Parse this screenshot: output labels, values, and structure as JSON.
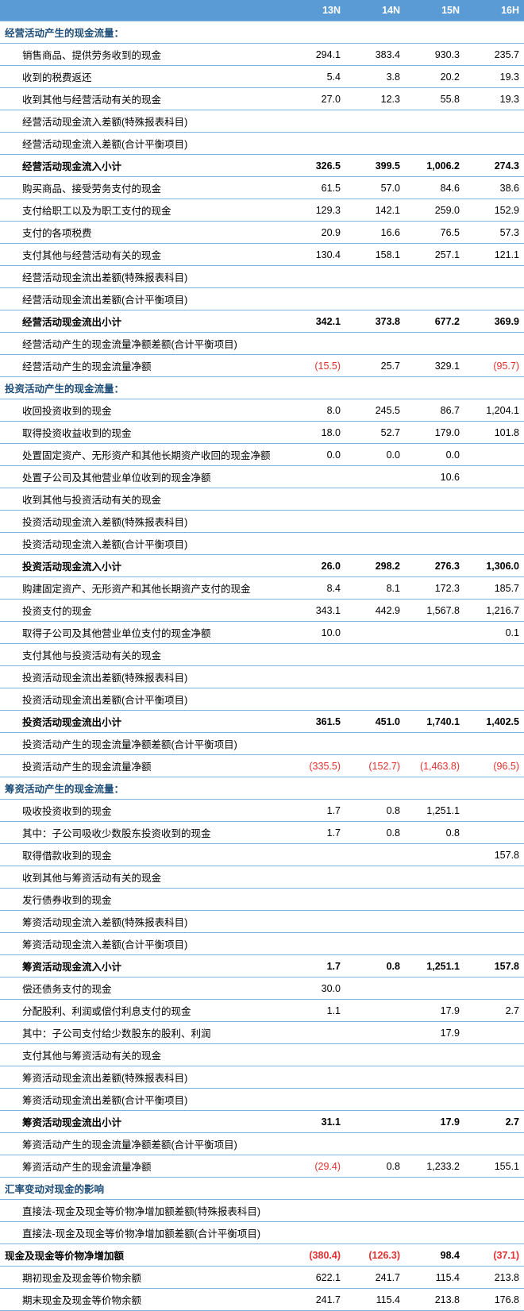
{
  "colors": {
    "header_bg": "#5b9bd5",
    "header_text": "#ffffff",
    "row_border": "#7fb3e0",
    "section_text": "#1f4e79",
    "negative": "#e03030",
    "text": "#000000"
  },
  "columns": [
    "",
    "13N",
    "14N",
    "15N",
    "16H"
  ],
  "rows": [
    {
      "type": "section",
      "label": "经营活动产生的现金流量：",
      "v": [
        "",
        "",
        "",
        ""
      ]
    },
    {
      "type": "item",
      "indent": 1,
      "label": "销售商品、提供劳务收到的现金",
      "v": [
        "294.1",
        "383.4",
        "930.3",
        "235.7"
      ]
    },
    {
      "type": "item",
      "indent": 1,
      "label": "收到的税费返还",
      "v": [
        "5.4",
        "3.8",
        "20.2",
        "19.3"
      ]
    },
    {
      "type": "item",
      "indent": 1,
      "label": "收到其他与经营活动有关的现金",
      "v": [
        "27.0",
        "12.3",
        "55.8",
        "19.3"
      ]
    },
    {
      "type": "item",
      "indent": 1,
      "label": "经营活动现金流入差额(特殊报表科目)",
      "v": [
        "",
        "",
        "",
        ""
      ]
    },
    {
      "type": "item",
      "indent": 1,
      "label": "经营活动现金流入差额(合计平衡项目)",
      "v": [
        "",
        "",
        "",
        ""
      ]
    },
    {
      "type": "subtotal",
      "indent": 1,
      "label": "经营活动现金流入小计",
      "v": [
        "326.5",
        "399.5",
        "1,006.2",
        "274.3"
      ]
    },
    {
      "type": "item",
      "indent": 1,
      "label": "购买商品、接受劳务支付的现金",
      "v": [
        "61.5",
        "57.0",
        "84.6",
        "38.6"
      ]
    },
    {
      "type": "item",
      "indent": 1,
      "label": "支付给职工以及为职工支付的现金",
      "v": [
        "129.3",
        "142.1",
        "259.0",
        "152.9"
      ]
    },
    {
      "type": "item",
      "indent": 1,
      "label": "支付的各项税费",
      "v": [
        "20.9",
        "16.6",
        "76.5",
        "57.3"
      ]
    },
    {
      "type": "item",
      "indent": 1,
      "label": "支付其他与经营活动有关的现金",
      "v": [
        "130.4",
        "158.1",
        "257.1",
        "121.1"
      ]
    },
    {
      "type": "item",
      "indent": 1,
      "label": "经营活动现金流出差额(特殊报表科目)",
      "v": [
        "",
        "",
        "",
        ""
      ]
    },
    {
      "type": "item",
      "indent": 1,
      "label": "经营活动现金流出差额(合计平衡项目)",
      "v": [
        "",
        "",
        "",
        ""
      ]
    },
    {
      "type": "subtotal",
      "indent": 1,
      "label": "经营活动现金流出小计",
      "v": [
        "342.1",
        "373.8",
        "677.2",
        "369.9"
      ]
    },
    {
      "type": "item",
      "indent": 1,
      "label": "经营活动产生的现金流量净额差额(合计平衡项目)",
      "v": [
        "",
        "",
        "",
        ""
      ]
    },
    {
      "type": "item",
      "indent": 1,
      "label": "经营活动产生的现金流量净额",
      "v": [
        "(15.5)",
        "25.7",
        "329.1",
        "(95.7)"
      ],
      "neg": [
        true,
        false,
        false,
        true
      ]
    },
    {
      "type": "section",
      "label": "投资活动产生的现金流量：",
      "v": [
        "",
        "",
        "",
        ""
      ]
    },
    {
      "type": "item",
      "indent": 1,
      "label": "收回投资收到的现金",
      "v": [
        "8.0",
        "245.5",
        "86.7",
        "1,204.1"
      ]
    },
    {
      "type": "item",
      "indent": 1,
      "label": "取得投资收益收到的现金",
      "v": [
        "18.0",
        "52.7",
        "179.0",
        "101.8"
      ]
    },
    {
      "type": "item",
      "indent": 1,
      "label": "处置固定资产、无形资产和其他长期资产收回的现金净额",
      "v": [
        "0.0",
        "0.0",
        "0.0",
        ""
      ]
    },
    {
      "type": "item",
      "indent": 1,
      "label": "处置子公司及其他营业单位收到的现金净额",
      "v": [
        "",
        "",
        "10.6",
        ""
      ]
    },
    {
      "type": "item",
      "indent": 1,
      "label": "收到其他与投资活动有关的现金",
      "v": [
        "",
        "",
        "",
        ""
      ]
    },
    {
      "type": "item",
      "indent": 1,
      "label": "投资活动现金流入差额(特殊报表科目)",
      "v": [
        "",
        "",
        "",
        ""
      ]
    },
    {
      "type": "item",
      "indent": 1,
      "label": "投资活动现金流入差额(合计平衡项目)",
      "v": [
        "",
        "",
        "",
        ""
      ]
    },
    {
      "type": "subtotal",
      "indent": 1,
      "label": "投资活动现金流入小计",
      "v": [
        "26.0",
        "298.2",
        "276.3",
        "1,306.0"
      ]
    },
    {
      "type": "item",
      "indent": 1,
      "label": "购建固定资产、无形资产和其他长期资产支付的现金",
      "v": [
        "8.4",
        "8.1",
        "172.3",
        "185.7"
      ]
    },
    {
      "type": "item",
      "indent": 1,
      "label": "投资支付的现金",
      "v": [
        "343.1",
        "442.9",
        "1,567.8",
        "1,216.7"
      ]
    },
    {
      "type": "item",
      "indent": 1,
      "label": "取得子公司及其他营业单位支付的现金净额",
      "v": [
        "10.0",
        "",
        "",
        "0.1"
      ]
    },
    {
      "type": "item",
      "indent": 1,
      "label": "支付其他与投资活动有关的现金",
      "v": [
        "",
        "",
        "",
        ""
      ]
    },
    {
      "type": "item",
      "indent": 1,
      "label": "投资活动现金流出差额(特殊报表科目)",
      "v": [
        "",
        "",
        "",
        ""
      ]
    },
    {
      "type": "item",
      "indent": 1,
      "label": "投资活动现金流出差额(合计平衡项目)",
      "v": [
        "",
        "",
        "",
        ""
      ]
    },
    {
      "type": "subtotal",
      "indent": 1,
      "label": "投资活动现金流出小计",
      "v": [
        "361.5",
        "451.0",
        "1,740.1",
        "1,402.5"
      ]
    },
    {
      "type": "item",
      "indent": 1,
      "label": "投资活动产生的现金流量净额差额(合计平衡项目)",
      "v": [
        "",
        "",
        "",
        ""
      ]
    },
    {
      "type": "item",
      "indent": 1,
      "label": "投资活动产生的现金流量净额",
      "v": [
        "(335.5)",
        "(152.7)",
        "(1,463.8)",
        "(96.5)"
      ],
      "neg": [
        true,
        true,
        true,
        true
      ]
    },
    {
      "type": "section",
      "label": "筹资活动产生的现金流量：",
      "v": [
        "",
        "",
        "",
        ""
      ]
    },
    {
      "type": "item",
      "indent": 1,
      "label": "吸收投资收到的现金",
      "v": [
        "1.7",
        "0.8",
        "1,251.1",
        ""
      ]
    },
    {
      "type": "item",
      "indent": 1,
      "label": "其中：子公司吸收少数股东投资收到的现金",
      "v": [
        "1.7",
        "0.8",
        "0.8",
        ""
      ]
    },
    {
      "type": "item",
      "indent": 1,
      "label": "取得借款收到的现金",
      "v": [
        "",
        "",
        "",
        "157.8"
      ]
    },
    {
      "type": "item",
      "indent": 1,
      "label": "收到其他与筹资活动有关的现金",
      "v": [
        "",
        "",
        "",
        ""
      ]
    },
    {
      "type": "item",
      "indent": 1,
      "label": "发行债券收到的现金",
      "v": [
        "",
        "",
        "",
        ""
      ]
    },
    {
      "type": "item",
      "indent": 1,
      "label": "筹资活动现金流入差额(特殊报表科目)",
      "v": [
        "",
        "",
        "",
        ""
      ]
    },
    {
      "type": "item",
      "indent": 1,
      "label": "筹资活动现金流入差额(合计平衡项目)",
      "v": [
        "",
        "",
        "",
        ""
      ]
    },
    {
      "type": "subtotal",
      "indent": 1,
      "label": "筹资活动现金流入小计",
      "v": [
        "1.7",
        "0.8",
        "1,251.1",
        "157.8"
      ]
    },
    {
      "type": "item",
      "indent": 1,
      "label": "偿还债务支付的现金",
      "v": [
        "30.0",
        "",
        "",
        ""
      ]
    },
    {
      "type": "item",
      "indent": 1,
      "label": "分配股利、利润或偿付利息支付的现金",
      "v": [
        "1.1",
        "",
        "17.9",
        "2.7"
      ]
    },
    {
      "type": "item",
      "indent": 1,
      "label": "其中：子公司支付给少数股东的股利、利润",
      "v": [
        "",
        "",
        "17.9",
        ""
      ]
    },
    {
      "type": "item",
      "indent": 1,
      "label": "支付其他与筹资活动有关的现金",
      "v": [
        "",
        "",
        "",
        ""
      ]
    },
    {
      "type": "item",
      "indent": 1,
      "label": "筹资活动现金流出差额(特殊报表科目)",
      "v": [
        "",
        "",
        "",
        ""
      ]
    },
    {
      "type": "item",
      "indent": 1,
      "label": "筹资活动现金流出差额(合计平衡项目)",
      "v": [
        "",
        "",
        "",
        ""
      ]
    },
    {
      "type": "subtotal",
      "indent": 1,
      "label": "筹资活动现金流出小计",
      "v": [
        "31.1",
        "",
        "17.9",
        "2.7"
      ]
    },
    {
      "type": "item",
      "indent": 1,
      "label": "筹资活动产生的现金流量净额差额(合计平衡项目)",
      "v": [
        "",
        "",
        "",
        ""
      ]
    },
    {
      "type": "item",
      "indent": 1,
      "label": "筹资活动产生的现金流量净额",
      "v": [
        "(29.4)",
        "0.8",
        "1,233.2",
        "155.1"
      ],
      "neg": [
        true,
        false,
        false,
        false
      ]
    },
    {
      "type": "section",
      "label": "汇率变动对现金的影响",
      "v": [
        "",
        "",
        "",
        ""
      ]
    },
    {
      "type": "item",
      "indent": 1,
      "label": "直接法-现金及现金等价物净增加额差额(特殊报表科目)",
      "v": [
        "",
        "",
        "",
        ""
      ]
    },
    {
      "type": "item",
      "indent": 1,
      "label": "直接法-现金及现金等价物净增加额差额(合计平衡项目)",
      "v": [
        "",
        "",
        "",
        ""
      ]
    },
    {
      "type": "total",
      "label": "现金及现金等价物净增加额",
      "v": [
        "(380.4)",
        "(126.3)",
        "98.4",
        "(37.1)"
      ],
      "neg": [
        true,
        true,
        false,
        true
      ]
    },
    {
      "type": "item",
      "indent": 1,
      "label": "期初现金及现金等价物余额",
      "v": [
        "622.1",
        "241.7",
        "115.4",
        "213.8"
      ]
    },
    {
      "type": "item",
      "indent": 1,
      "label": "期末现金及现金等价物余额",
      "v": [
        "241.7",
        "115.4",
        "213.8",
        "176.8"
      ]
    }
  ]
}
